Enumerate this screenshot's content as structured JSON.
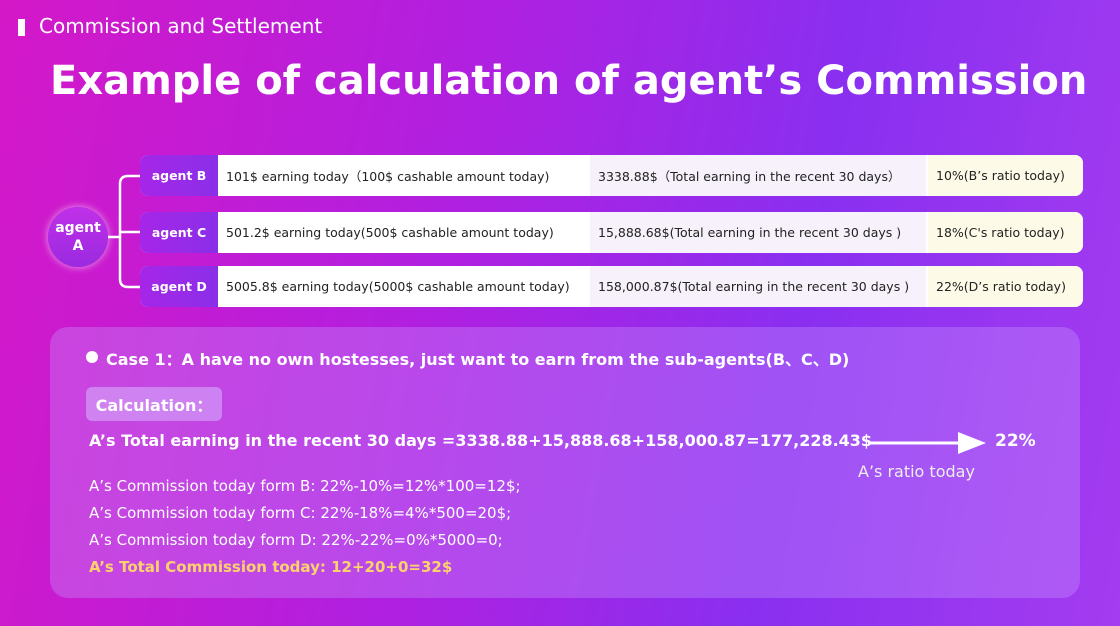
{
  "header": {
    "section": "Commission and Settlement",
    "title": "Example of calculation of agent’s  Commission"
  },
  "tree": {
    "root": [
      "agent",
      "A"
    ],
    "rows": [
      {
        "agent": "agent B",
        "earning": "101$ earning today（100$ cashable amount today)",
        "total": "3338.88$（Total earning in the recent 30 days）",
        "ratio": "10%(B’s ratio today)"
      },
      {
        "agent": "agent C",
        "earning": "501.2$ earning today(500$ cashable amount today)",
        "total": "15,888.68$(Total earning in the recent 30 days )",
        "ratio": "18%(C's ratio today)"
      },
      {
        "agent": "agent D",
        "earning": "5005.8$ earning today(5000$ cashable amount today)",
        "total": "158,000.87$(Total earning in the recent 30 days )",
        "ratio": "22%(D’s ratio today)"
      }
    ]
  },
  "case": {
    "heading": "Case 1：A have no own hostesses, just want to earn from the sub-agents(B、C、D)",
    "calc_label": "Calculation：",
    "total_line": "A’s Total earning in the recent 30 days =3338.88+15,888.68+158,000.87=177,228.43$",
    "ratio": "22%",
    "ratio_label": "A’s ratio today",
    "lines": [
      "A’s Commission today form B: 22%-10%=12%*100=12$;",
      "A’s Commission today form C: 22%-18%=4%*500=20$;",
      "A’s Commission today form D: 22%-22%=0%*5000=0;"
    ],
    "total_commission": "A’s Total Commission today: 12+20+0=32$"
  }
}
